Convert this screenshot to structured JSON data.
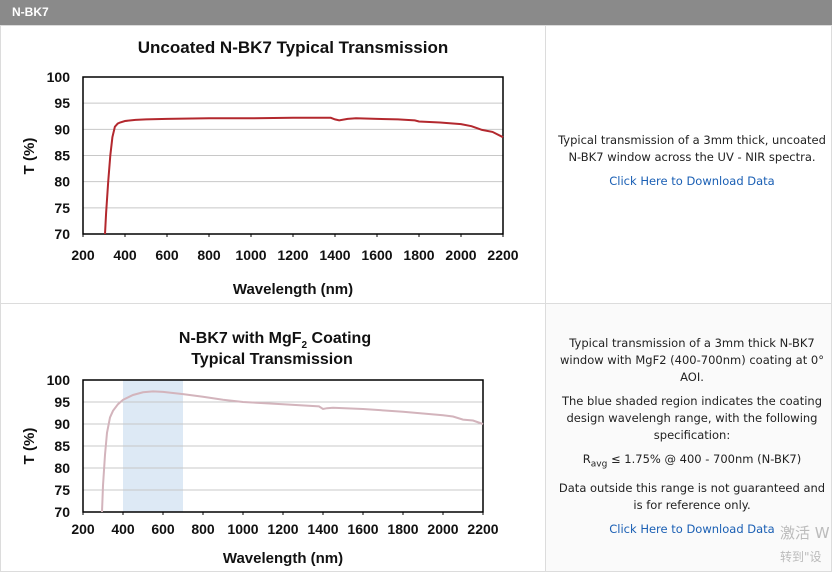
{
  "header": {
    "title": "N-BK7"
  },
  "chart_data": [
    {
      "type": "line",
      "title": "Uncoated N-BK7 Typical Transmission",
      "x_label": "Wavelength (nm)",
      "y_label": "T (%)",
      "x": [
        305,
        310,
        320,
        330,
        340,
        352,
        365,
        376,
        400,
        450,
        500,
        600,
        800,
        1000,
        1200,
        1300,
        1380,
        1400,
        1420,
        1460,
        1500,
        1600,
        1700,
        1780,
        1800,
        1900,
        2000,
        2050,
        2100,
        2150,
        2200
      ],
      "values": [
        70,
        74,
        80,
        85,
        88.5,
        90.5,
        91.1,
        91.3,
        91.6,
        91.8,
        91.9,
        92,
        92.1,
        92.1,
        92.2,
        92.2,
        92.2,
        91.9,
        91.7,
        92,
        92.1,
        92,
        91.9,
        91.7,
        91.5,
        91.3,
        91,
        90.6,
        89.9,
        89.5,
        88.5
      ],
      "color": "#b3282e",
      "xlim": [
        200,
        2200
      ],
      "xticks": [
        200,
        400,
        600,
        800,
        1000,
        1200,
        1400,
        1600,
        1800,
        2000,
        2200
      ],
      "ylim": [
        70,
        100
      ],
      "yticks": [
        70,
        75,
        80,
        85,
        90,
        95,
        100
      ],
      "grid": true
    },
    {
      "type": "line",
      "title": [
        "N-BK7 with MgF",
        "2",
        " Coating",
        "Typical Transmission"
      ],
      "x_label": "Wavelength (nm)",
      "y_label": "T (%)",
      "x": [
        295,
        300,
        310,
        320,
        335,
        350,
        375,
        400,
        450,
        500,
        550,
        600,
        700,
        800,
        900,
        1000,
        1200,
        1380,
        1400,
        1420,
        1450,
        1600,
        1800,
        2000,
        2050,
        2100,
        2150,
        2200
      ],
      "values": [
        70,
        76,
        83,
        88,
        91.5,
        93,
        94.5,
        95.5,
        96.6,
        97.2,
        97.4,
        97.3,
        96.8,
        96.2,
        95.5,
        95,
        94.5,
        94,
        93.4,
        93.6,
        93.7,
        93.4,
        92.8,
        92,
        91.7,
        91,
        90.8,
        90
      ],
      "color": "#d3b4bc",
      "shade": {
        "x": [
          400,
          700
        ],
        "color": "#dde9f5"
      },
      "xlim": [
        200,
        2200
      ],
      "xticks": [
        200,
        400,
        600,
        800,
        1000,
        1200,
        1400,
        1600,
        1800,
        2000,
        2200
      ],
      "ylim": [
        70,
        100
      ],
      "yticks": [
        70,
        75,
        80,
        85,
        90,
        95,
        100
      ],
      "grid": true
    }
  ],
  "descriptions": [
    {
      "text": "Typical transmission of a 3mm thick, uncoated N-BK7 window across the UV - NIR spectra.",
      "link": "Click Here to Download Data"
    },
    {
      "text": "Typical transmission of a 3mm thick N-BK7 window with MgF2 (400-700nm) coating at 0° AOI.",
      "text2": "The blue shaded region indicates the coating design wavelengh range, with the following specification:",
      "spec": [
        "R",
        "avg",
        " ≤ 1.75% @ 400 - 700nm (N-BK7)"
      ],
      "text3": "Data outside this range is not guaranteed and is for reference only.",
      "link": "Click Here to Download Data"
    }
  ],
  "watermark": [
    "激活 W",
    "转到\"设"
  ]
}
